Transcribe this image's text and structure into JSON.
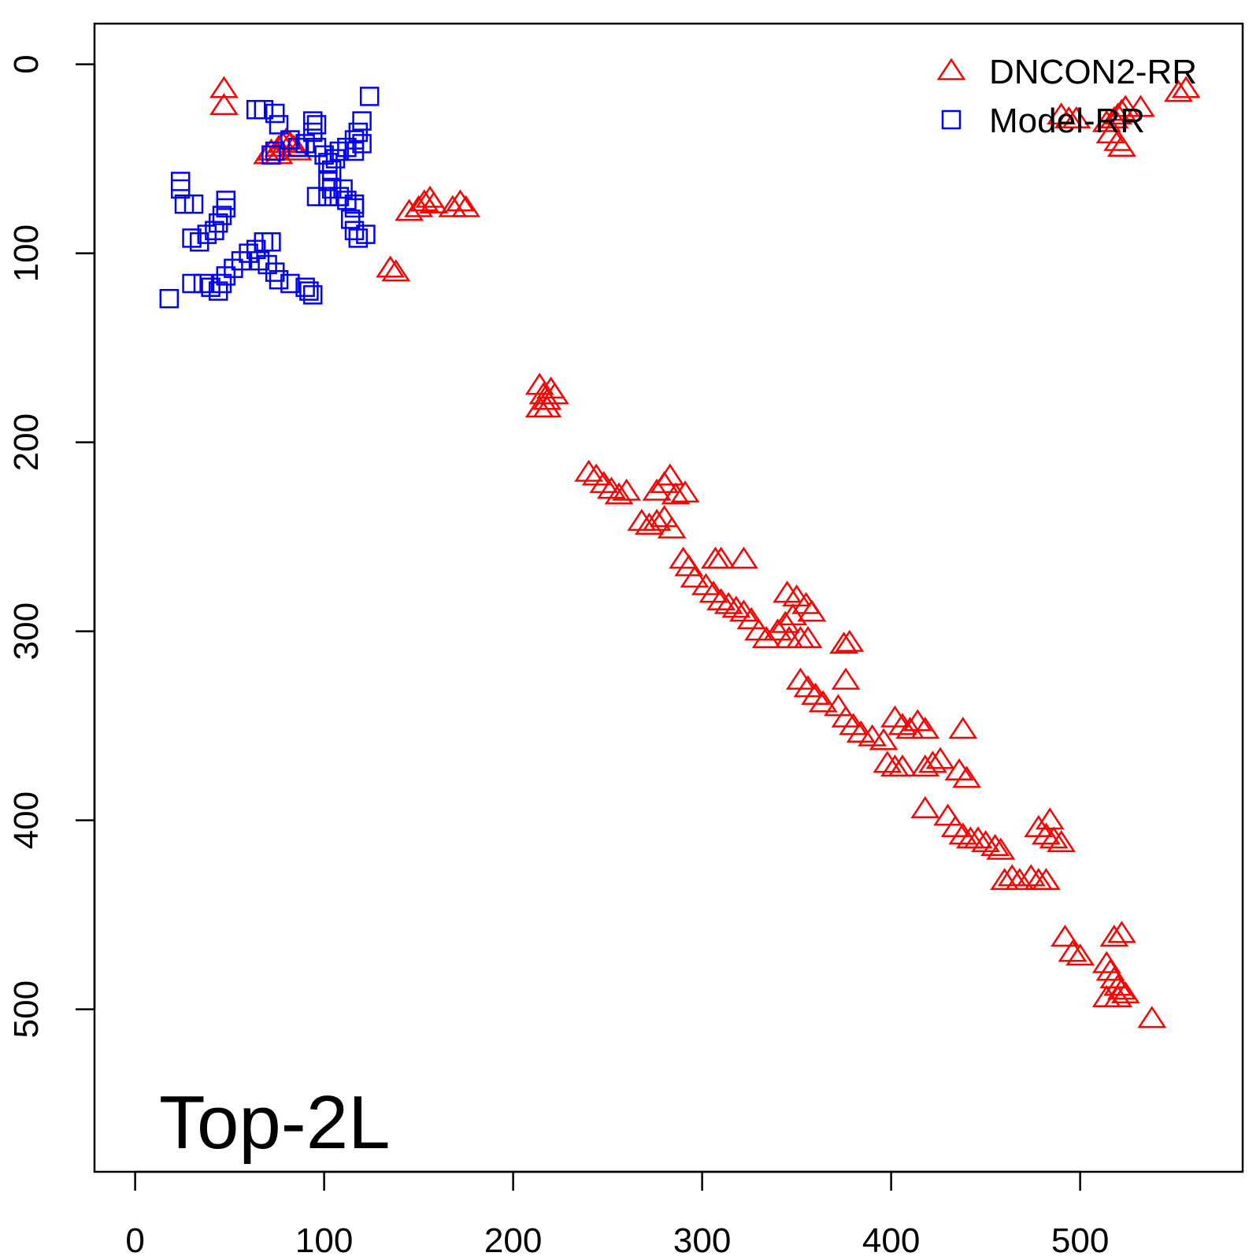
{
  "chart_data": {
    "type": "scatter",
    "title": "",
    "xlabel": "",
    "ylabel": "",
    "annotation": "Top-2L",
    "xlim": [
      -21.5,
      586
    ],
    "ylim": [
      586,
      -21.5
    ],
    "y_reversed": true,
    "x_ticks": [
      "0",
      "100",
      "200",
      "300",
      "400",
      "500"
    ],
    "y_ticks": [
      "0",
      "100",
      "200",
      "300",
      "400",
      "500"
    ],
    "grid": false,
    "legend_position": "top-right",
    "series": [
      {
        "name": "DNCON2-RR",
        "marker": "triangle",
        "color": "#ff0000",
        "points": [
          [
            47,
            13
          ],
          [
            47,
            22
          ],
          [
            72,
            46
          ],
          [
            76,
            44
          ],
          [
            78,
            42
          ],
          [
            80,
            40
          ],
          [
            82,
            42
          ],
          [
            84,
            44
          ],
          [
            86,
            46
          ],
          [
            76,
            48
          ],
          [
            70,
            48
          ],
          [
            145,
            78
          ],
          [
            150,
            76
          ],
          [
            153,
            73
          ],
          [
            156,
            71
          ],
          [
            158,
            74
          ],
          [
            168,
            76
          ],
          [
            172,
            73
          ],
          [
            175,
            76
          ],
          [
            135,
            108
          ],
          [
            138,
            110
          ],
          [
            214,
            170
          ],
          [
            216,
            175
          ],
          [
            218,
            178
          ],
          [
            220,
            172
          ],
          [
            222,
            175
          ],
          [
            214,
            182
          ],
          [
            218,
            182
          ],
          [
            240,
            216
          ],
          [
            244,
            218
          ],
          [
            248,
            222
          ],
          [
            252,
            225
          ],
          [
            256,
            228
          ],
          [
            260,
            226
          ],
          [
            268,
            242
          ],
          [
            272,
            244
          ],
          [
            276,
            242
          ],
          [
            280,
            240
          ],
          [
            284,
            246
          ],
          [
            276,
            226
          ],
          [
            280,
            222
          ],
          [
            283,
            218
          ],
          [
            286,
            228
          ],
          [
            291,
            227
          ],
          [
            290,
            262
          ],
          [
            293,
            266
          ],
          [
            296,
            272
          ],
          [
            307,
            262
          ],
          [
            310,
            262
          ],
          [
            322,
            262
          ],
          [
            302,
            276
          ],
          [
            306,
            280
          ],
          [
            310,
            284
          ],
          [
            314,
            286
          ],
          [
            318,
            288
          ],
          [
            322,
            290
          ],
          [
            326,
            294
          ],
          [
            330,
            300
          ],
          [
            334,
            304
          ],
          [
            340,
            300
          ],
          [
            344,
            296
          ],
          [
            348,
            292
          ],
          [
            345,
            280
          ],
          [
            350,
            282
          ],
          [
            355,
            286
          ],
          [
            358,
            290
          ],
          [
            346,
            304
          ],
          [
            352,
            304
          ],
          [
            356,
            304
          ],
          [
            378,
            306
          ],
          [
            375,
            307
          ],
          [
            376,
            326
          ],
          [
            352,
            326
          ],
          [
            356,
            330
          ],
          [
            360,
            334
          ],
          [
            364,
            338
          ],
          [
            372,
            340
          ],
          [
            376,
            346
          ],
          [
            380,
            350
          ],
          [
            384,
            354
          ],
          [
            390,
            356
          ],
          [
            396,
            358
          ],
          [
            402,
            346
          ],
          [
            406,
            350
          ],
          [
            410,
            352
          ],
          [
            414,
            348
          ],
          [
            418,
            352
          ],
          [
            398,
            370
          ],
          [
            402,
            372
          ],
          [
            406,
            372
          ],
          [
            418,
            372
          ],
          [
            422,
            370
          ],
          [
            426,
            368
          ],
          [
            436,
            374
          ],
          [
            440,
            378
          ],
          [
            438,
            352
          ],
          [
            418,
            394
          ],
          [
            430,
            398
          ],
          [
            434,
            404
          ],
          [
            438,
            408
          ],
          [
            442,
            410
          ],
          [
            446,
            410
          ],
          [
            450,
            412
          ],
          [
            455,
            414
          ],
          [
            458,
            416
          ],
          [
            460,
            432
          ],
          [
            464,
            430
          ],
          [
            468,
            432
          ],
          [
            474,
            430
          ],
          [
            478,
            432
          ],
          [
            482,
            432
          ],
          [
            478,
            404
          ],
          [
            482,
            408
          ],
          [
            486,
            410
          ],
          [
            490,
            412
          ],
          [
            484,
            400
          ],
          [
            492,
            462
          ],
          [
            496,
            470
          ],
          [
            500,
            472
          ],
          [
            514,
            476
          ],
          [
            516,
            480
          ],
          [
            518,
            484
          ],
          [
            520,
            488
          ],
          [
            522,
            490
          ],
          [
            524,
            492
          ],
          [
            518,
            462
          ],
          [
            522,
            460
          ],
          [
            514,
            494
          ],
          [
            520,
            494
          ],
          [
            538,
            505
          ],
          [
            490,
            27
          ],
          [
            494,
            29
          ],
          [
            498,
            29
          ],
          [
            514,
            31
          ],
          [
            518,
            29
          ],
          [
            520,
            27
          ],
          [
            522,
            25
          ],
          [
            524,
            23
          ],
          [
            532,
            23
          ],
          [
            516,
            37
          ],
          [
            520,
            41
          ],
          [
            522,
            44
          ],
          [
            552,
            15
          ],
          [
            556,
            13
          ]
        ]
      },
      {
        "name": "Model-RR",
        "marker": "square",
        "color": "#0000ff",
        "points": [
          [
            24,
            62
          ],
          [
            24,
            66
          ],
          [
            26,
            74
          ],
          [
            31,
            74
          ],
          [
            18,
            124
          ],
          [
            30,
            92
          ],
          [
            34,
            94
          ],
          [
            38,
            90
          ],
          [
            42,
            88
          ],
          [
            44,
            84
          ],
          [
            46,
            80
          ],
          [
            48,
            76
          ],
          [
            48,
            72
          ],
          [
            30,
            116
          ],
          [
            36,
            116
          ],
          [
            40,
            118
          ],
          [
            44,
            120
          ],
          [
            46,
            116
          ],
          [
            48,
            112
          ],
          [
            52,
            108
          ],
          [
            56,
            104
          ],
          [
            60,
            100
          ],
          [
            64,
            98
          ],
          [
            66,
            104
          ],
          [
            70,
            106
          ],
          [
            74,
            110
          ],
          [
            76,
            114
          ],
          [
            68,
            94
          ],
          [
            72,
            94
          ],
          [
            82,
            116
          ],
          [
            90,
            118
          ],
          [
            92,
            120
          ],
          [
            94,
            122
          ],
          [
            64,
            24
          ],
          [
            68,
            24
          ],
          [
            74,
            26
          ],
          [
            76,
            32
          ],
          [
            82,
            40
          ],
          [
            86,
            44
          ],
          [
            90,
            42
          ],
          [
            94,
            36
          ],
          [
            94,
            30
          ],
          [
            96,
            32
          ],
          [
            72,
            48
          ],
          [
            74,
            46
          ],
          [
            96,
            44
          ],
          [
            100,
            48
          ],
          [
            102,
            52
          ],
          [
            104,
            56
          ],
          [
            106,
            50
          ],
          [
            108,
            46
          ],
          [
            112,
            44
          ],
          [
            116,
            40
          ],
          [
            118,
            36
          ],
          [
            120,
            30
          ],
          [
            124,
            17
          ],
          [
            120,
            42
          ],
          [
            116,
            46
          ],
          [
            102,
            62
          ],
          [
            104,
            66
          ],
          [
            96,
            70
          ],
          [
            102,
            70
          ],
          [
            108,
            70
          ],
          [
            112,
            72
          ],
          [
            116,
            74
          ],
          [
            110,
            66
          ],
          [
            116,
            76
          ],
          [
            114,
            82
          ],
          [
            116,
            88
          ],
          [
            118,
            92
          ],
          [
            122,
            90
          ]
        ]
      }
    ]
  }
}
